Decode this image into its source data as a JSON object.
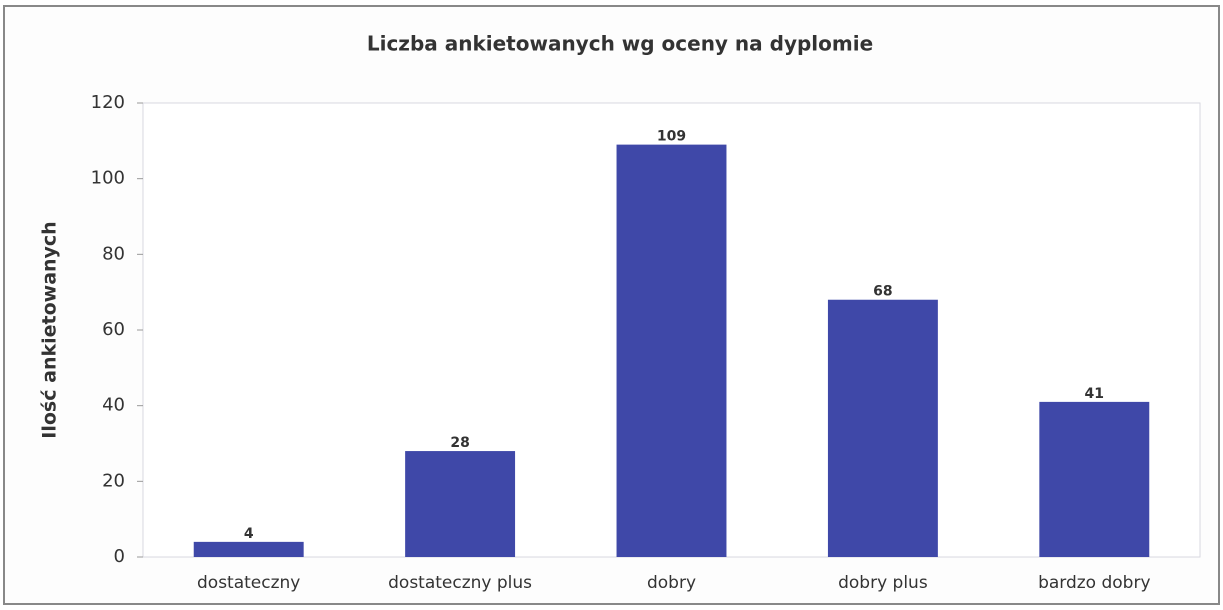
{
  "chart_data": {
    "type": "bar",
    "title": "Liczba ankietowanych wg oceny na dyplomie",
    "y_label": "Ilość ankietowanych",
    "categories": [
      "dostateczny",
      "dostateczny plus",
      "dobry",
      "dobry plus",
      "bardzo dobry"
    ],
    "values": [
      4,
      28,
      109,
      68,
      41
    ],
    "color": "#3f48a8",
    "ylim": [
      0,
      120
    ],
    "yticks": [
      0,
      20,
      40,
      60,
      80,
      100,
      120
    ],
    "grid": false
  }
}
